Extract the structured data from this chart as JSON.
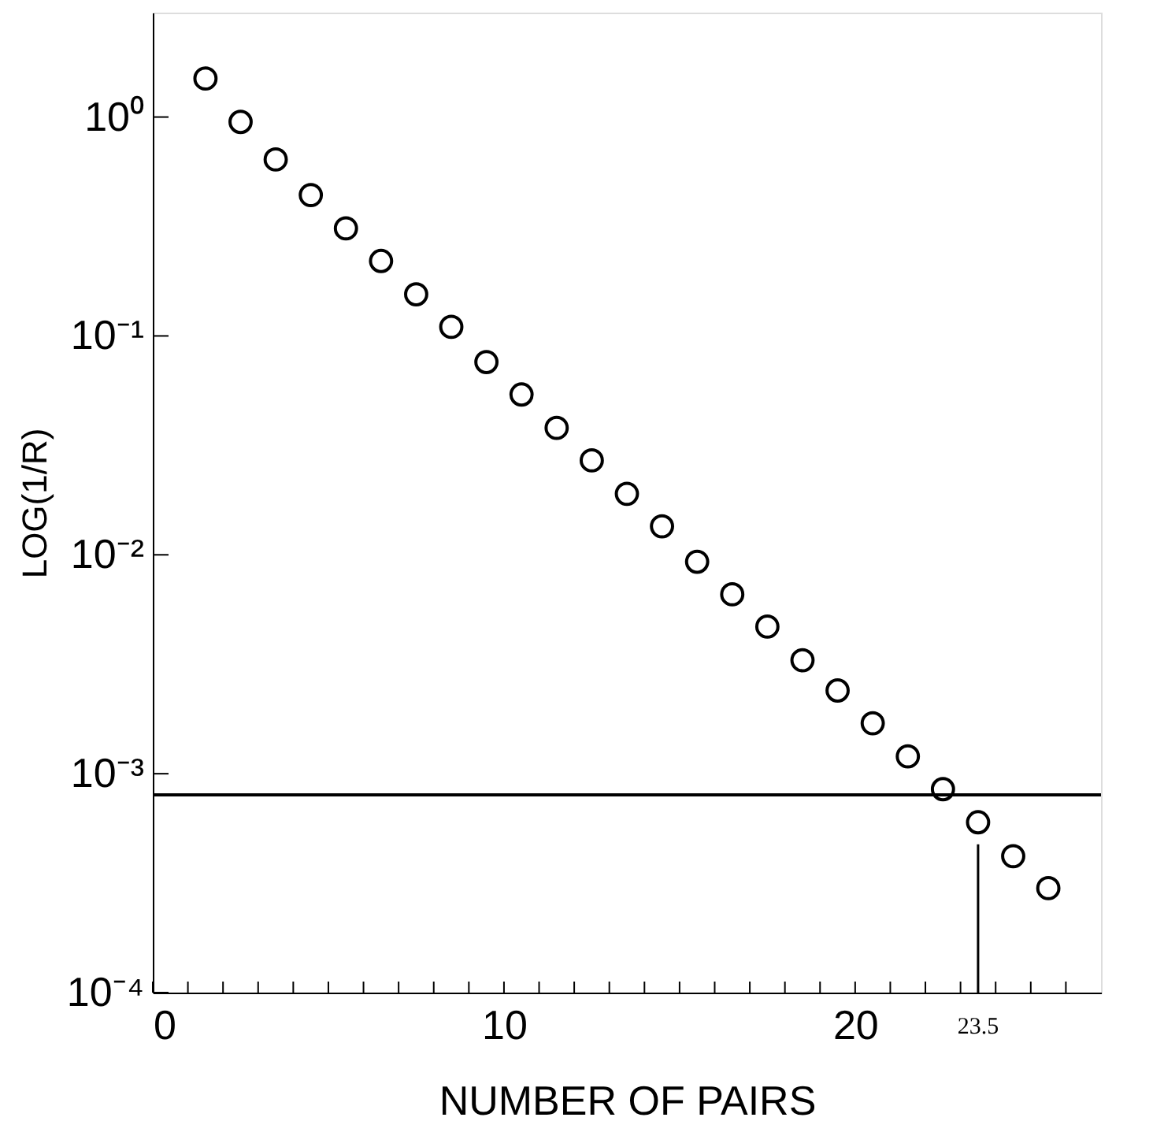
{
  "chart_data": {
    "type": "scatter",
    "xlabel": "NUMBER OF PAIRS",
    "ylabel": "LOG(1/R)",
    "log": "y",
    "marker": "circle",
    "grid": false,
    "x": [
      1.5,
      2.5,
      3.5,
      4.5,
      5.5,
      6.5,
      7.5,
      8.5,
      9.5,
      10.5,
      11.5,
      12.5,
      13.5,
      14.5,
      15.5,
      16.5,
      17.5,
      18.5,
      19.5,
      20.5,
      21.5,
      22.5,
      23.5,
      24.5,
      25.5
    ],
    "series": [
      {
        "color": "#000000",
        "values": [
          1.5,
          0.95,
          0.64,
          0.44,
          0.31,
          0.22,
          0.155,
          0.11,
          0.076,
          0.054,
          0.038,
          0.027,
          0.019,
          0.0135,
          0.0093,
          0.0066,
          0.0047,
          0.0033,
          0.0024,
          0.0017,
          0.0012,
          0.00085,
          0.0006,
          0.00042,
          0.0003
        ]
      }
    ],
    "xlim": [
      0,
      27
    ],
    "xticks": [
      0,
      {
        "value": 1,
        "label": null
      },
      {
        "value": 2,
        "label": null
      },
      {
        "value": 3,
        "label": null
      },
      {
        "value": 4,
        "label": null
      },
      {
        "value": 5,
        "label": null
      },
      {
        "value": 6,
        "label": null
      },
      {
        "value": 7,
        "label": null
      },
      {
        "value": 8,
        "label": null
      },
      {
        "value": 9,
        "label": null
      },
      10,
      {
        "value": 11,
        "label": null
      },
      {
        "value": 12,
        "label": null
      },
      {
        "value": 13,
        "label": null
      },
      {
        "value": 14,
        "label": null
      },
      {
        "value": 15,
        "label": null
      },
      {
        "value": 16,
        "label": null
      },
      {
        "value": 17,
        "label": null
      },
      {
        "value": 18,
        "label": null
      },
      {
        "value": 19,
        "label": null
      },
      20,
      {
        "value": 21,
        "label": null
      },
      {
        "value": 22,
        "label": null
      },
      {
        "value": 23,
        "label": null
      },
      {
        "value": 24,
        "label": null
      },
      {
        "value": 25,
        "label": null
      },
      {
        "value": 26,
        "label": null
      }
    ],
    "ylim": [
      0.0001,
      3
    ],
    "yticks": [
      {
        "value": 0.0001,
        "label": "10⁻⁴"
      },
      {
        "value": 0.001,
        "label": "10⁻³"
      },
      {
        "value": 0.01,
        "label": "10⁻²"
      },
      {
        "value": 0.1,
        "label": "10⁻¹"
      },
      {
        "value": 1,
        "label": "10⁰"
      }
    ],
    "ref_lines": [
      {
        "axis": "y",
        "value": 0.0008,
        "color": "#000000"
      },
      {
        "axis": "x",
        "value": 23.5,
        "label": "23.5",
        "color": "#000000"
      }
    ]
  }
}
